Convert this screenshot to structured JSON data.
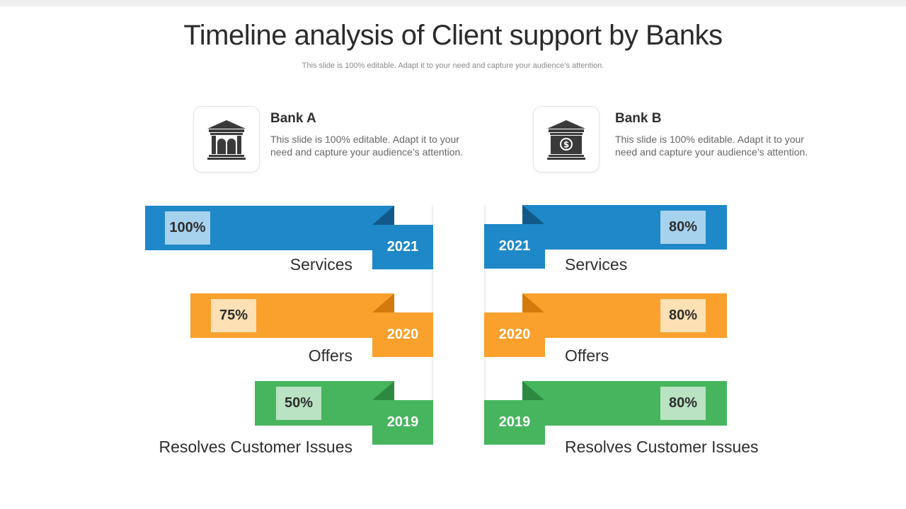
{
  "title": "Timeline analysis of Client support by Banks",
  "subtitle": "This slide is 100% editable. Adapt it to your need and capture your audience’s attention.",
  "colors": {
    "services": "#1e88c8",
    "offers": "#f9a12c",
    "issues": "#46b55e"
  },
  "bank_a": {
    "name": "Bank A",
    "desc": "This slide is 100% editable. Adapt it to your need and capture your audience’s attention.",
    "icon": "bank-building-icon",
    "rows": [
      {
        "year": "2021",
        "percent": "100%",
        "category": "Services"
      },
      {
        "year": "2020",
        "percent": "75%",
        "category": "Offers"
      },
      {
        "year": "2019",
        "percent": "50%",
        "category": "Resolves Customer Issues"
      }
    ]
  },
  "bank_b": {
    "name": "Bank B",
    "desc": "This slide is 100% editable. Adapt it to your need and capture your audience’s attention.",
    "icon": "bank-dollar-icon",
    "rows": [
      {
        "year": "2021",
        "percent": "80%",
        "category": "Services"
      },
      {
        "year": "2020",
        "percent": "80%",
        "category": "Offers"
      },
      {
        "year": "2019",
        "percent": "80%",
        "category": "Resolves Customer Issues"
      }
    ]
  }
}
